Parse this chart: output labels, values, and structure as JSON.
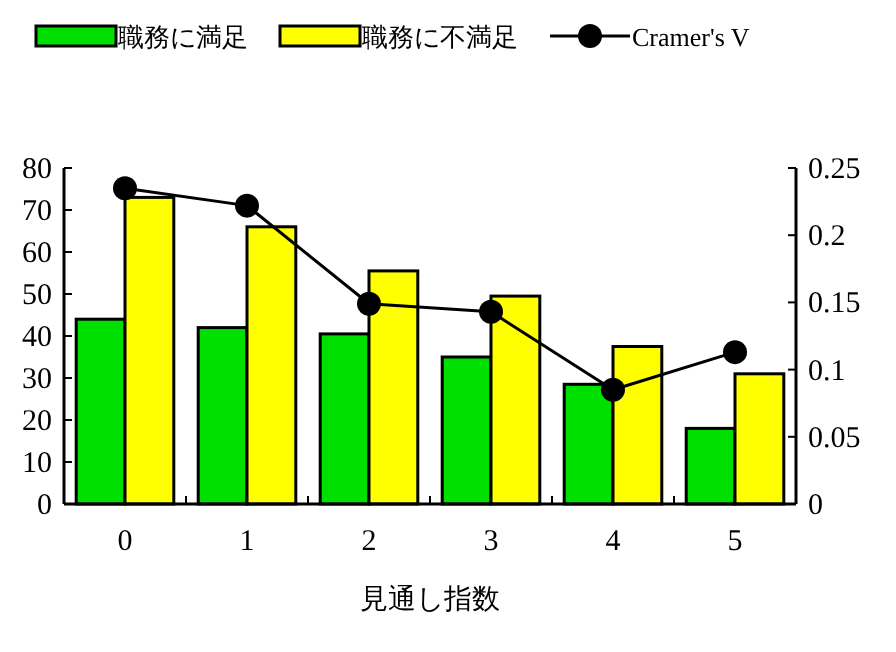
{
  "chart_data": {
    "type": "bar",
    "xlabel": "見通し指数",
    "categories": [
      "0",
      "1",
      "2",
      "3",
      "4",
      "5"
    ],
    "series": [
      {
        "name": "職務に満足",
        "color": "#00e000",
        "values": [
          44,
          42,
          40.5,
          35,
          28.5,
          18
        ]
      },
      {
        "name": "職務に不満足",
        "color": "#ffff00",
        "values": [
          73,
          66,
          55.5,
          49.5,
          37.5,
          31
        ]
      },
      {
        "name": "Cramer's V",
        "type": "line",
        "axis": "y2",
        "color": "#000000",
        "marker": "circle",
        "values": [
          0.235,
          0.222,
          0.149,
          0.143,
          0.085,
          0.113
        ]
      }
    ],
    "ylim": [
      0,
      80
    ],
    "yticks": [
      0,
      10,
      20,
      30,
      40,
      50,
      60,
      70,
      80
    ],
    "y2lim": [
      0,
      0.25
    ],
    "y2ticks": [
      0,
      0.05,
      0.1,
      0.15,
      0.2,
      0.25
    ],
    "legend": "top"
  }
}
